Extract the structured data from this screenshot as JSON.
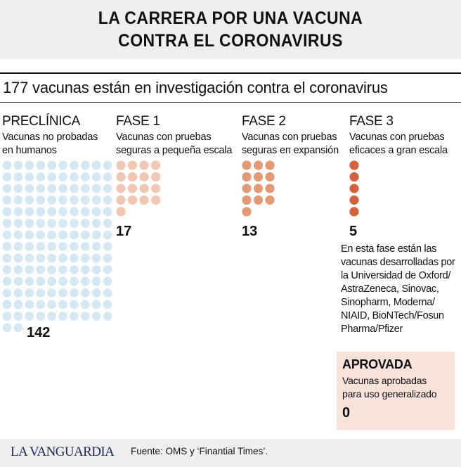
{
  "header": {
    "title_line1": "LA CARRERA POR UNA VACUNA",
    "title_line2": "CONTRA EL CORONAVIRUS"
  },
  "subtitle": "177 vacunas están en investigación contra el coronavirus",
  "chart_data": {
    "type": "dot-matrix",
    "total": 177,
    "stages": [
      {
        "name": "PRECLÍNICA",
        "description": "Vacunas no probadas\nen humanos",
        "value": 142,
        "label": "142",
        "color": "#d5e8f1"
      },
      {
        "name": "FASE 1",
        "description": "Vacunas con pruebas\nseguras a pequeña escala",
        "value": 17,
        "label": "17",
        "color": "#f0c7b2"
      },
      {
        "name": "FASE 2",
        "description": "Vacunas con pruebas\nseguras en expansión",
        "value": 13,
        "label": "13",
        "color": "#e39a75"
      },
      {
        "name": "FASE 3",
        "description": "Vacunas con pruebas\neficaces a gran escala",
        "value": 5,
        "label": "5",
        "color": "#d4623e"
      }
    ],
    "phase3_note": "En esta fase están las\nvacunas desarrolladas por\nla Universidad de Oxford/\nAstraZeneca, Sinovac,\nSinopharm, Moderna/\nNIAID, BioNTech/Fosun\nPharma/Pfizer",
    "approved": {
      "title": "APROVADA",
      "description": "Vacunas aprobadas\npara uso generalizado",
      "value": 0,
      "label": "0"
    }
  },
  "footer": {
    "logo": "LA VANGUARDIA",
    "source": "Fuente: OMS y ‘Finantial Times’."
  }
}
